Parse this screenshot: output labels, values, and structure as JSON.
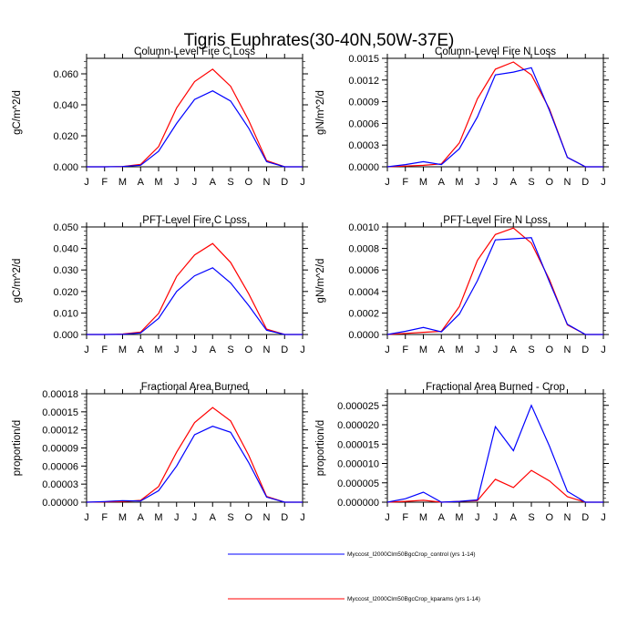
{
  "figure_title": "Tigris Euphrates(30-40N,50W-37E)",
  "legend": [
    {
      "label": "Myccost_I2000Clm50BgcCrop_control (yrs 1-14)",
      "color": "#0000ff"
    },
    {
      "label": "Myccost_I2000Clm50BgcCrop_kparams (yrs 1-14)",
      "color": "#ff0000"
    }
  ],
  "chart_data": [
    {
      "type": "line",
      "title": "Column-Level Fire C Loss",
      "xlabel": "",
      "ylabel": "gC/m^2/d",
      "x": [
        "J",
        "F",
        "M",
        "A",
        "M",
        "J",
        "J",
        "A",
        "S",
        "O",
        "N",
        "D",
        "J"
      ],
      "ylim": [
        0,
        0.07
      ],
      "yticks": [
        "0.000",
        "0.020",
        "0.040",
        "0.060"
      ],
      "ytick_values": [
        0,
        0.02,
        0.04,
        0.06
      ],
      "series": [
        {
          "name": "Myccost_I2000Clm50BgcCrop_control (yrs 1-14)",
          "color": "#0000ff",
          "values": [
            0.0,
            0.0,
            0.0002,
            0.001,
            0.01,
            0.028,
            0.0435,
            0.049,
            0.0425,
            0.025,
            0.0033,
            0.0,
            0.0
          ]
        },
        {
          "name": "Myccost_I2000Clm50BgcCrop_kparams (yrs 1-14)",
          "color": "#ff0000",
          "values": [
            0.0,
            0.0,
            0.0002,
            0.0015,
            0.013,
            0.038,
            0.055,
            0.063,
            0.052,
            0.03,
            0.004,
            0.0,
            0.0
          ]
        }
      ]
    },
    {
      "type": "line",
      "title": "Column-Level Fire N Loss",
      "xlabel": "",
      "ylabel": "gN/m^2/d",
      "x": [
        "J",
        "F",
        "M",
        "A",
        "M",
        "J",
        "J",
        "A",
        "S",
        "O",
        "N",
        "D",
        "J"
      ],
      "ylim": [
        0,
        0.0015
      ],
      "yticks": [
        "0.0000",
        "0.0003",
        "0.0006",
        "0.0009",
        "0.0012",
        "0.0015"
      ],
      "ytick_values": [
        0,
        0.0003,
        0.0006,
        0.0009,
        0.0012,
        0.0015
      ],
      "series": [
        {
          "name": "Myccost_I2000Clm50BgcCrop_control (yrs 1-14)",
          "color": "#0000ff",
          "values": [
            0.0,
            3e-05,
            7e-05,
            3e-05,
            0.00025,
            0.00069,
            0.00127,
            0.00131,
            0.00137,
            0.00078,
            0.00013,
            0.0,
            0.0
          ]
        },
        {
          "name": "Myccost_I2000Clm50BgcCrop_kparams (yrs 1-14)",
          "color": "#ff0000",
          "values": [
            0.0,
            1e-05,
            2e-05,
            4e-05,
            0.00033,
            0.00094,
            0.00135,
            0.00145,
            0.00127,
            0.0008,
            0.00013,
            0.0,
            0.0
          ]
        }
      ]
    },
    {
      "type": "line",
      "title": "PFT-Level Fire C Loss",
      "xlabel": "",
      "ylabel": "gC/m^2/d",
      "x": [
        "J",
        "F",
        "M",
        "A",
        "M",
        "J",
        "J",
        "A",
        "S",
        "O",
        "N",
        "D",
        "J"
      ],
      "ylim": [
        0,
        0.05
      ],
      "yticks": [
        "0.000",
        "0.010",
        "0.020",
        "0.030",
        "0.040",
        "0.050"
      ],
      "ytick_values": [
        0,
        0.01,
        0.02,
        0.03,
        0.04,
        0.05
      ],
      "series": [
        {
          "name": "Myccost_I2000Clm50BgcCrop_control (yrs 1-14)",
          "color": "#0000ff",
          "values": [
            0.0,
            0.0,
            0.0001,
            0.0007,
            0.0075,
            0.02,
            0.0273,
            0.031,
            0.024,
            0.0135,
            0.002,
            0.0,
            0.0
          ]
        },
        {
          "name": "Myccost_I2000Clm50BgcCrop_kparams (yrs 1-14)",
          "color": "#ff0000",
          "values": [
            0.0,
            0.0,
            0.0002,
            0.0011,
            0.0098,
            0.027,
            0.037,
            0.0423,
            0.0335,
            0.019,
            0.0025,
            0.0,
            0.0
          ]
        }
      ]
    },
    {
      "type": "line",
      "title": "PFT-Level Fire N Loss",
      "xlabel": "",
      "ylabel": "gN/m^2/d",
      "x": [
        "J",
        "F",
        "M",
        "A",
        "M",
        "J",
        "J",
        "A",
        "S",
        "O",
        "N",
        "D",
        "J"
      ],
      "ylim": [
        0,
        0.001
      ],
      "yticks": [
        "0.0000",
        "0.0002",
        "0.0004",
        "0.0006",
        "0.0008",
        "0.0010"
      ],
      "ytick_values": [
        0,
        0.0002,
        0.0004,
        0.0006,
        0.0008,
        0.001
      ],
      "series": [
        {
          "name": "Myccost_I2000Clm50BgcCrop_control (yrs 1-14)",
          "color": "#0000ff",
          "values": [
            0.0,
            3e-05,
            6.5e-05,
            2.5e-05,
            0.00019,
            0.0005,
            0.00088,
            0.00089,
            0.0009,
            0.00049,
            9.5e-05,
            0.0,
            0.0
          ]
        },
        {
          "name": "Myccost_I2000Clm50BgcCrop_kparams (yrs 1-14)",
          "color": "#ff0000",
          "values": [
            0.0,
            1e-05,
            2e-05,
            3e-05,
            0.00026,
            0.00069,
            0.00093,
            0.00099,
            0.00085,
            0.00051,
            9e-05,
            0.0,
            0.0
          ]
        }
      ]
    },
    {
      "type": "line",
      "title": "Fractional Area Burned",
      "xlabel": "",
      "ylabel": "proportion/d",
      "x": [
        "J",
        "F",
        "M",
        "A",
        "M",
        "J",
        "J",
        "A",
        "S",
        "O",
        "N",
        "D",
        "J"
      ],
      "ylim": [
        0,
        0.00018
      ],
      "yticks": [
        "0.00000",
        "0.00003",
        "0.00006",
        "0.00009",
        "0.00012",
        "0.00015",
        "0.00018"
      ],
      "ytick_values": [
        0,
        3e-05,
        6e-05,
        9e-05,
        0.00012,
        0.00015,
        0.00018
      ],
      "series": [
        {
          "name": "Myccost_I2000Clm50BgcCrop_control (yrs 1-14)",
          "color": "#0000ff",
          "values": [
            0.0,
            1e-06,
            2.5e-06,
            2e-06,
            1.9e-05,
            6e-05,
            0.000112,
            0.000126,
            0.000116,
            6.6e-05,
            8.5e-06,
            0.0,
            0.0
          ]
        },
        {
          "name": "Myccost_I2000Clm50BgcCrop_kparams (yrs 1-14)",
          "color": "#ff0000",
          "values": [
            0.0,
            5e-07,
            1e-06,
            3e-06,
            2.6e-05,
            8.3e-05,
            0.000132,
            0.000157,
            0.000135,
            7.8e-05,
            9.5e-06,
            0.0,
            0.0
          ]
        }
      ]
    },
    {
      "type": "line",
      "title": "Fractional Area Burned - Crop",
      "xlabel": "",
      "ylabel": "proportion/d",
      "x": [
        "J",
        "F",
        "M",
        "A",
        "M",
        "J",
        "J",
        "A",
        "S",
        "O",
        "N",
        "D",
        "J"
      ],
      "ylim": [
        0,
        2.8e-05
      ],
      "yticks": [
        "0.000000",
        "0.000005",
        "0.000010",
        "0.000015",
        "0.000020",
        "0.000025"
      ],
      "ytick_values": [
        0,
        5e-06,
        1e-05,
        1.5e-05,
        2e-05,
        2.5e-05
      ],
      "series": [
        {
          "name": "Myccost_I2000Clm50BgcCrop_control (yrs 1-14)",
          "color": "#0000ff",
          "values": [
            0.0,
            9e-07,
            2.6e-06,
            0.0,
            2e-07,
            6e-07,
            1.95e-05,
            1.33e-05,
            2.5e-05,
            1.45e-05,
            2.8e-06,
            0.0,
            0.0
          ]
        },
        {
          "name": "Myccost_I2000Clm50BgcCrop_kparams (yrs 1-14)",
          "color": "#ff0000",
          "values": [
            0.0,
            2e-07,
            5e-07,
            0.0,
            2e-07,
            4e-07,
            5.9e-06,
            3.8e-06,
            8.2e-06,
            5.5e-06,
            1.4e-06,
            0.0,
            0.0
          ]
        }
      ]
    }
  ]
}
